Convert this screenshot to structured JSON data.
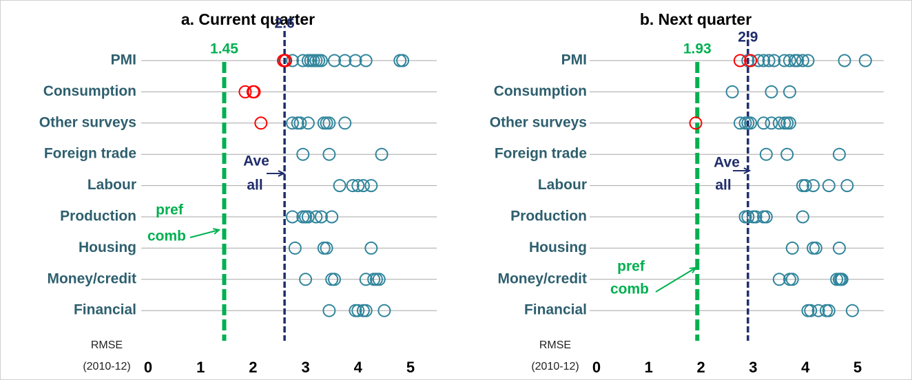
{
  "chart_data": [
    {
      "type": "dot-strip",
      "title": "a. Current quarter",
      "categories": [
        "PMI",
        "Consumption",
        "Other surveys",
        "Foreign trade",
        "Labour",
        "Production",
        "Housing",
        "Money/credit",
        "Financial"
      ],
      "series": [
        {
          "color": "#31859c",
          "values": [
            [
              2.6,
              2.75,
              2.95,
              3.05,
              3.1,
              3.15,
              3.2,
              3.25,
              3.3,
              3.55,
              3.75,
              3.95,
              4.15,
              4.8,
              4.85
            ],
            [],
            [
              2.75,
              2.85,
              2.9,
              3.05,
              3.35,
              3.4,
              3.45,
              3.75
            ],
            [
              2.95,
              3.45,
              4.45
            ],
            [
              3.65,
              3.9,
              4.0,
              4.1,
              4.25
            ],
            [
              2.75,
              2.95,
              3.0,
              3.05,
              3.2,
              3.3,
              3.5
            ],
            [
              2.8,
              3.35,
              3.4,
              4.25
            ],
            [
              3.0,
              3.5,
              3.55,
              4.15,
              4.3,
              4.35,
              4.4
            ],
            [
              3.45,
              3.95,
              4.0,
              4.1,
              4.15,
              4.5
            ]
          ]
        },
        {
          "color": "#ff0000",
          "values": [
            [
              2.58,
              2.62
            ],
            [
              1.85,
              2.0,
              2.02
            ],
            [
              2.15
            ],
            [],
            [],
            [],
            [],
            [],
            []
          ]
        }
      ],
      "lines": [
        {
          "value": 1.45,
          "color": "#00b050"
        },
        {
          "value": 2.6,
          "color": "#1f2d6b"
        }
      ],
      "annotations": [
        "Ave",
        "all",
        "pref",
        "comb"
      ],
      "xlabel": [
        "RMSE",
        "(2010-12)"
      ],
      "xlim": [
        0,
        5.5
      ],
      "xticks": [
        0,
        1,
        2,
        3,
        4,
        5
      ]
    },
    {
      "type": "dot-strip",
      "title": "b. Next quarter",
      "categories": [
        "PMI",
        "Consumption",
        "Other surveys",
        "Foreign trade",
        "Labour",
        "Production",
        "Housing",
        "Money/credit",
        "Financial"
      ],
      "series": [
        {
          "color": "#31859c",
          "values": [
            [
              2.9,
              3.1,
              3.2,
              3.3,
              3.4,
              3.6,
              3.7,
              3.8,
              3.85,
              3.95,
              4.05,
              4.75,
              5.15
            ],
            [
              2.6,
              3.35,
              3.7
            ],
            [
              2.75,
              2.85,
              2.9,
              2.95,
              3.2,
              3.35,
              3.5,
              3.6,
              3.65,
              3.7
            ],
            [
              3.25,
              3.65,
              4.65
            ],
            [
              3.95,
              4.0,
              4.15,
              4.45,
              4.8
            ],
            [
              2.85,
              2.9,
              3.0,
              3.05,
              3.2,
              3.25,
              3.95
            ],
            [
              3.75,
              4.15,
              4.2,
              4.65
            ],
            [
              3.5,
              3.7,
              3.75,
              4.6,
              4.65,
              4.7,
              4.68
            ],
            [
              4.05,
              4.1,
              4.25,
              4.4,
              4.45,
              4.9
            ]
          ]
        },
        {
          "color": "#ff0000",
          "values": [
            [
              2.75,
              2.95
            ],
            [],
            [
              1.9
            ],
            [],
            [],
            [],
            [],
            [],
            []
          ]
        }
      ],
      "lines": [
        {
          "value": 1.93,
          "color": "#00b050"
        },
        {
          "value": 2.9,
          "color": "#1f2d6b"
        }
      ],
      "annotations": [
        "Ave",
        "all",
        "pref",
        "comb"
      ],
      "xlabel": [
        "RMSE",
        "(2010-12)"
      ],
      "xlim": [
        0,
        5.5
      ],
      "xticks": [
        0,
        1,
        2,
        3,
        4,
        5
      ]
    }
  ]
}
